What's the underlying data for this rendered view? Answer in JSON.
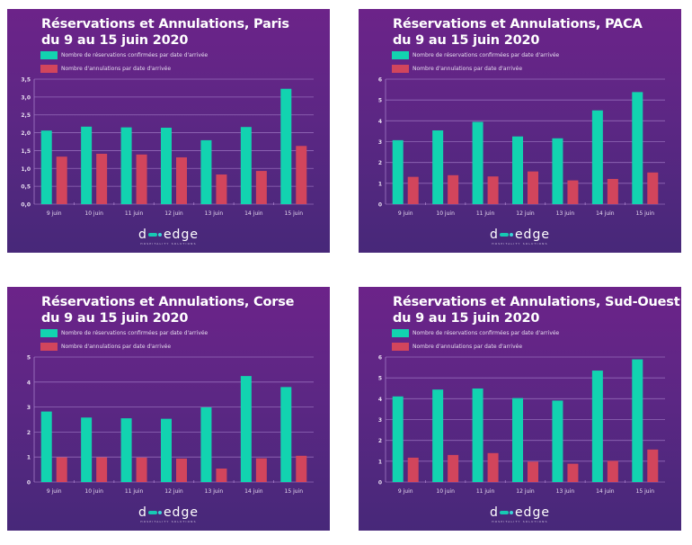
{
  "brand": {
    "logo_left": "d",
    "logo_right": "edge",
    "tagline": "HOSPITALITY SOLUTIONS"
  },
  "colors": {
    "reservations": "#12d3b0",
    "annulations": "#d2455c",
    "grid": "#a27bc6",
    "tick_text": "#e6dcef"
  },
  "legend": {
    "reservations": "Nombre de réservations confirmées par date d'arrivée",
    "annulations": "Nombre d'annulations par date d'arrivée"
  },
  "chart_data": [
    {
      "type": "bar",
      "title": "Réservations et Annulations, Paris",
      "subtitle": "du 9 au 15 juin 2020",
      "categories": [
        "9 juin",
        "10 juin",
        "11 juin",
        "12 juin",
        "13 juin",
        "14 juin",
        "15 juin"
      ],
      "series": [
        {
          "name": "Nombre de réservations confirmées par date d'arrivée",
          "values": [
            2.06,
            2.17,
            2.15,
            2.14,
            1.79,
            2.16,
            3.23
          ]
        },
        {
          "name": "Nombre d'annulations par date d'arrivée",
          "values": [
            1.33,
            1.41,
            1.39,
            1.31,
            0.83,
            0.93,
            1.63
          ]
        }
      ],
      "xlabel": "",
      "ylabel": "",
      "ylim": [
        0,
        3.5
      ],
      "yticks": [
        "0,0",
        "0,5",
        "1,0",
        "1,5",
        "2,0",
        "2,5",
        "3,0",
        "3,5"
      ],
      "ytick_values": [
        0,
        0.5,
        1,
        1.5,
        2,
        2.5,
        3,
        3.5
      ],
      "grid": true,
      "legend_position": "top-left"
    },
    {
      "type": "bar",
      "title": "Réservations et Annulations, PACA",
      "subtitle": "du 9 au 15 juin 2020",
      "categories": [
        "9 juin",
        "10 juin",
        "11 juin",
        "12 juin",
        "13 juin",
        "14 juin",
        "15 juin"
      ],
      "series": [
        {
          "name": "Nombre de réservations confirmées par date d'arrivée",
          "values": [
            3.07,
            3.54,
            3.95,
            3.25,
            3.16,
            4.5,
            5.38
          ]
        },
        {
          "name": "Nombre d'annulations par date d'arrivée",
          "values": [
            1.31,
            1.39,
            1.33,
            1.57,
            1.14,
            1.21,
            1.52
          ]
        }
      ],
      "xlabel": "",
      "ylabel": "",
      "ylim": [
        0,
        6
      ],
      "yticks": [
        "0",
        "1",
        "2",
        "3",
        "4",
        "5",
        "6"
      ],
      "ytick_values": [
        0,
        1,
        2,
        3,
        4,
        5,
        6
      ],
      "grid": true,
      "legend_position": "top-left"
    },
    {
      "type": "bar",
      "title": "Réservations et Annulations, Corse",
      "subtitle": "du 9 au 15 juin 2020",
      "categories": [
        "9 juin",
        "10 juin",
        "11 juin",
        "12 juin",
        "13 juin",
        "14 juin",
        "15 juin"
      ],
      "series": [
        {
          "name": "Nombre de réservations confirmées par date d'arrivée",
          "values": [
            2.82,
            2.58,
            2.55,
            2.53,
            2.99,
            4.24,
            3.8
          ]
        },
        {
          "name": "Nombre d'annulations par date d'arrivée",
          "values": [
            0.99,
            0.99,
            0.98,
            0.94,
            0.54,
            0.95,
            1.05
          ]
        }
      ],
      "xlabel": "",
      "ylabel": "",
      "ylim": [
        0,
        5
      ],
      "yticks": [
        "0",
        "1",
        "2",
        "3",
        "4",
        "5"
      ],
      "ytick_values": [
        0,
        1,
        2,
        3,
        4,
        5
      ],
      "grid": true,
      "legend_position": "top-left"
    },
    {
      "type": "bar",
      "title": "Réservations et Annulations, Sud-Ouest",
      "subtitle": "du 9 au 15 juin 2020",
      "categories": [
        "9 juin",
        "10 juin",
        "11 juin",
        "12 juin",
        "13 juin",
        "14 juin",
        "15 juin"
      ],
      "series": [
        {
          "name": "Nombre de réservations confirmées par date d'arrivée",
          "values": [
            4.11,
            4.44,
            4.49,
            4.03,
            3.91,
            5.35,
            5.89
          ]
        },
        {
          "name": "Nombre d'annulations par date d'arrivée",
          "values": [
            1.17,
            1.3,
            1.39,
            0.98,
            0.88,
            1.02,
            1.56
          ]
        }
      ],
      "xlabel": "",
      "ylabel": "",
      "ylim": [
        0,
        6
      ],
      "yticks": [
        "0",
        "1",
        "2",
        "3",
        "4",
        "5",
        "6"
      ],
      "ytick_values": [
        0,
        1,
        2,
        3,
        4,
        5,
        6
      ],
      "grid": true,
      "legend_position": "top-left"
    }
  ]
}
